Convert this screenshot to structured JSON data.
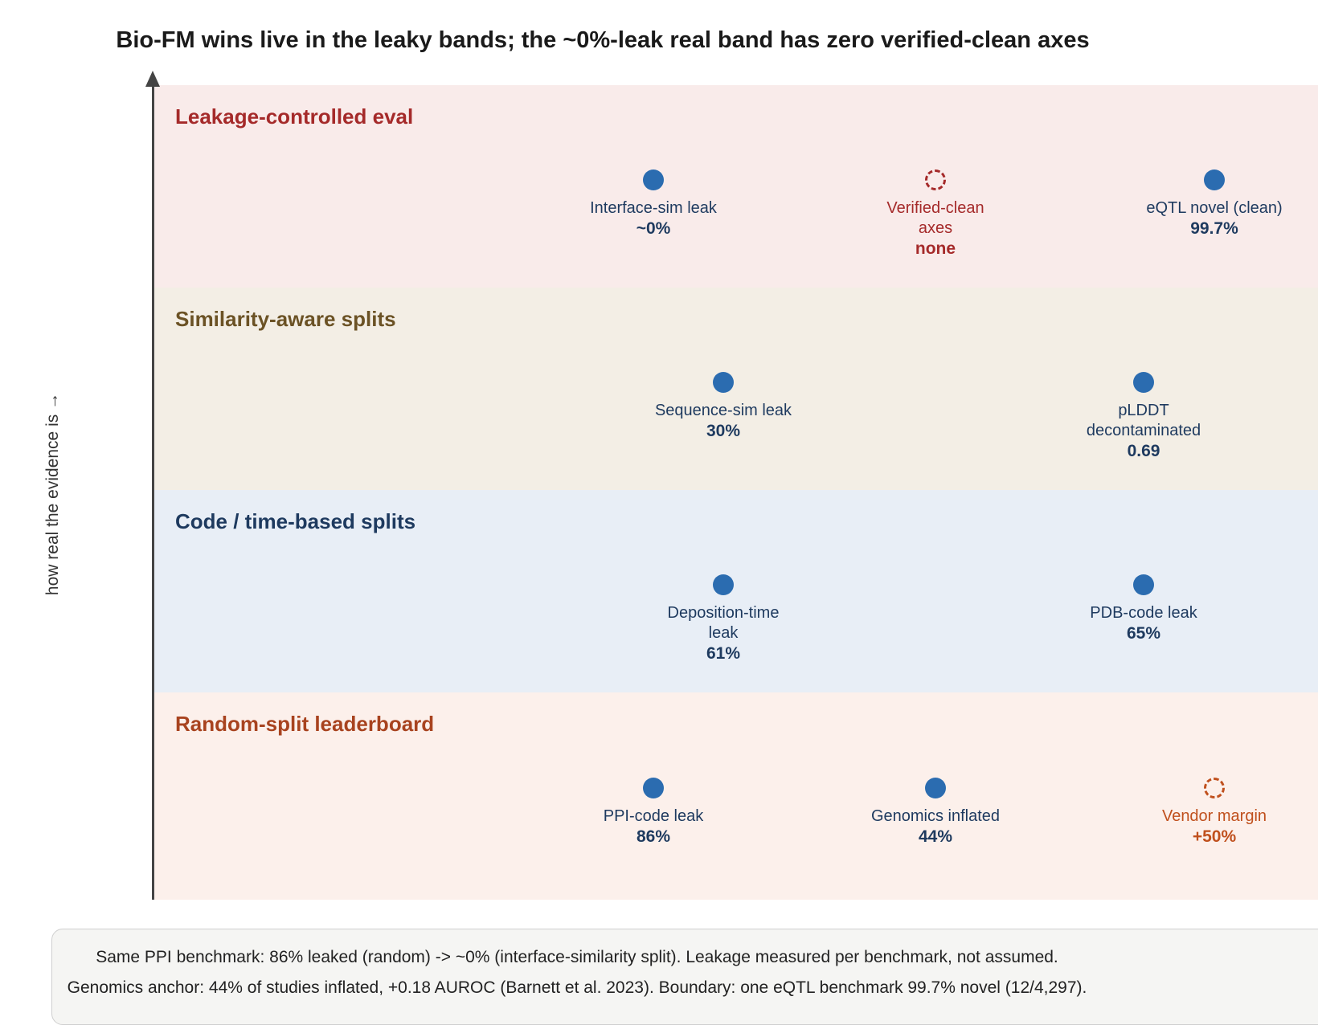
{
  "title": "Bio-FM wins live in the leaky bands; the ~0%-leak real band has zero verified-clean axes",
  "y_axis_label": "how real the evidence is →",
  "bands": [
    {
      "label": "Leakage-controlled eval",
      "color": "#f9ebea",
      "label_color": "#a52a2a",
      "points": [
        {
          "label": "Interface-sim leak",
          "value": "~0%",
          "style": "filled"
        },
        {
          "label": "Verified-clean axes",
          "value": "none",
          "style": "dashed-red"
        },
        {
          "label": "eQTL novel (clean)",
          "value": "99.7%",
          "style": "filled"
        }
      ]
    },
    {
      "label": "Similarity-aware splits",
      "color": "#f3eee5",
      "label_color": "#6b5225",
      "points": [
        {
          "label": "Sequence-sim leak",
          "value": "30%",
          "style": "filled"
        },
        {
          "label": "pLDDT decontaminated",
          "value": "0.69",
          "style": "filled"
        }
      ]
    },
    {
      "label": "Code / time-based splits",
      "color": "#e8eef6",
      "label_color": "#1e3a5f",
      "points": [
        {
          "label": "Deposition-time leak",
          "value": "61%",
          "style": "filled"
        },
        {
          "label": "PDB-code leak",
          "value": "65%",
          "style": "filled"
        }
      ]
    },
    {
      "label": "Random-split leaderboard",
      "color": "#fcf0eb",
      "label_color": "#a8431f",
      "points": [
        {
          "label": "PPI-code leak",
          "value": "86%",
          "style": "filled"
        },
        {
          "label": "Genomics inflated",
          "value": "44%",
          "style": "filled"
        },
        {
          "label": "Vendor margin",
          "value": "+50%",
          "style": "dashed-orange"
        }
      ]
    }
  ],
  "notes": [
    "Same PPI benchmark: 86% leaked (random) -> ~0% (interface-similarity split). Leakage measured per benchmark, not assumed.",
    "Genomics anchor: 44% of studies inflated, +0.18 AUROC (Barnett et al. 2023). Boundary: one eQTL benchmark 99.7% novel (12/4,297)."
  ],
  "colors": {
    "point": "#2b6cb0",
    "point_text": "#1e3a5f",
    "axis": "#444444"
  }
}
